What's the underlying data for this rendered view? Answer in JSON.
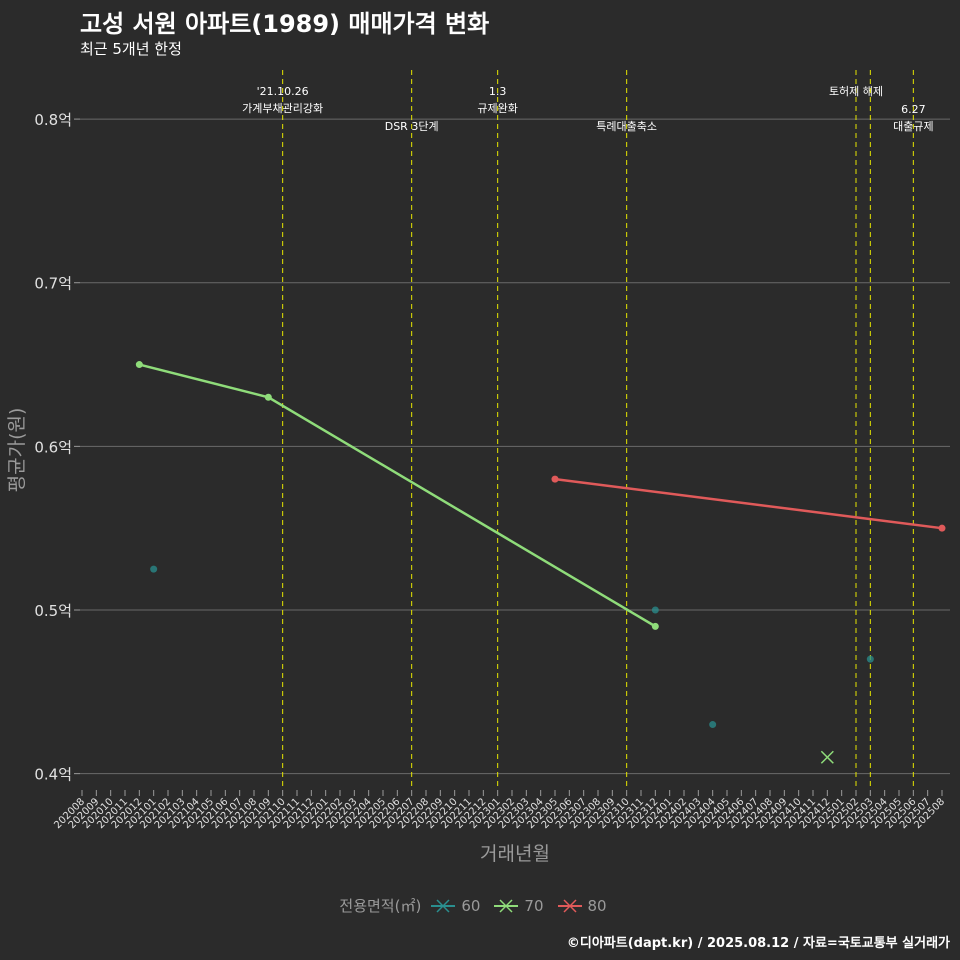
{
  "header": {
    "title": "고성 서원 아파트(1989) 매매가격 변화",
    "subtitle": "최근 5개년 한정"
  },
  "caption": "©디아파트(dapt.kr) / 2025.08.12 / 자료=국토교통부 실거래가",
  "legend": {
    "title": "전용면적(㎡)",
    "items": [
      {
        "label": "60",
        "color": "#2a8f8f"
      },
      {
        "label": "70",
        "color": "#8fdc7a"
      },
      {
        "label": "80",
        "color": "#e05a5a"
      }
    ]
  },
  "chart_data": {
    "type": "line",
    "xlabel": "거래년월",
    "ylabel": "평균가(원)",
    "categories": [
      "202008",
      "202009",
      "202010",
      "202011",
      "202012",
      "202101",
      "202102",
      "202103",
      "202104",
      "202105",
      "202106",
      "202107",
      "202108",
      "202109",
      "202110",
      "202111",
      "202112",
      "202201",
      "202202",
      "202203",
      "202204",
      "202205",
      "202206",
      "202207",
      "202208",
      "202209",
      "202210",
      "202211",
      "202212",
      "202301",
      "202302",
      "202303",
      "202304",
      "202305",
      "202306",
      "202307",
      "202308",
      "202309",
      "202310",
      "202311",
      "202312",
      "202401",
      "202402",
      "202403",
      "202404",
      "202405",
      "202406",
      "202407",
      "202408",
      "202409",
      "202410",
      "202411",
      "202412",
      "202501",
      "202502",
      "202503",
      "202504",
      "202505",
      "202506",
      "202507",
      "202508"
    ],
    "ylim": [
      0.39,
      0.83
    ],
    "yticks": [
      0.4,
      0.5,
      0.6,
      0.7,
      0.8
    ],
    "ytick_labels": [
      "0.4억",
      "0.5억",
      "0.6억",
      "0.7억",
      "0.8억"
    ],
    "grid": "horizontal",
    "legend_position": "bottom",
    "series": [
      {
        "name": "60",
        "color": "#2a8f8f",
        "points": [
          {
            "x": "202101",
            "y": 0.525
          },
          {
            "x": "202312",
            "y": 0.5
          },
          {
            "x": "202404",
            "y": 0.43
          },
          {
            "x": "202503",
            "y": 0.47
          }
        ]
      },
      {
        "name": "70",
        "color": "#8fdc7a",
        "points": [
          {
            "x": "202012",
            "y": 0.65
          },
          {
            "x": "202109",
            "y": 0.63
          },
          {
            "x": "202312",
            "y": 0.49
          }
        ]
      },
      {
        "name": "80",
        "color": "#e05a5a",
        "points": [
          {
            "x": "202305",
            "y": 0.58
          },
          {
            "x": "202508",
            "y": 0.55
          }
        ]
      }
    ],
    "special_marks": [
      {
        "x": "202412",
        "y": 0.41,
        "series": "70",
        "shape": "x"
      }
    ],
    "events": [
      {
        "x": "202110",
        "lines": [
          "'21.10.26",
          "가계부채관리강화"
        ],
        "row": "upper"
      },
      {
        "x": "202207",
        "lines": [
          "DSR 3단계"
        ],
        "row": "lower"
      },
      {
        "x": "202301",
        "lines": [
          "1.3",
          "규제완화"
        ],
        "row": "upper"
      },
      {
        "x": "202310",
        "lines": [
          "특례대출축소"
        ],
        "row": "lower"
      },
      {
        "x": "202502",
        "lines": [
          "토허제 해제"
        ],
        "row": "upper"
      },
      {
        "x": "202503",
        "lines": [],
        "row": "upper"
      },
      {
        "x": "202506",
        "lines": [
          "6.27",
          "대출규제"
        ],
        "row": "lower"
      }
    ],
    "event_line_color": "#e6e600"
  }
}
